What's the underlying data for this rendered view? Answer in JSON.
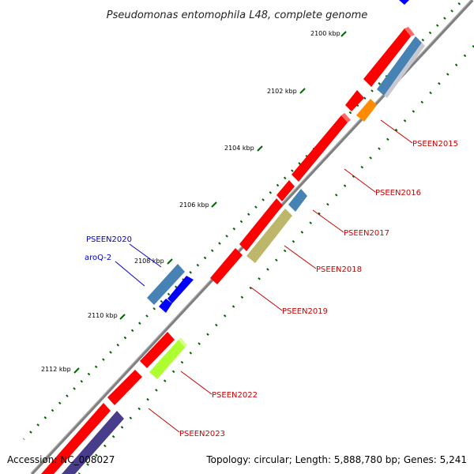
{
  "title": "Pseudomonas entomophila L48, complete genome",
  "accession_text": "Accession: NC_008027",
  "summary_text": "Topology: circular; Length: 5,888,780 bp; Genes: 5,241",
  "kbp_labels": [
    "2100 kbp",
    "2102 kbp",
    "2104 kbp",
    "2106 kbp",
    "2108 kbp",
    "2110 kbp",
    "2112 kbp"
  ],
  "gene_labels": {
    "pseen2015": "PSEEN2015",
    "pseen2016": "PSEEN2016",
    "pseen2017": "PSEEN2017",
    "pseen2018": "PSEEN2018",
    "pseen2019": "PSEEN2019",
    "pseen2020": "PSEEN2020",
    "aroq2": "aroQ-2",
    "pseen2022": "PSEEN2022",
    "pseen2023": "PSEEN2023"
  },
  "colors": {
    "backbone": "#808080",
    "forward_gene": "#ff0000",
    "reverse_gene_a": "#4682b4",
    "reverse_gene_b": "#bdb76b",
    "reverse_gene_c": "#adff2f",
    "reverse_gene_d": "#483d8b",
    "reverse_gene_e": "#ff8c00",
    "left_gene": "#0000ff",
    "tick": "#006400",
    "label_right": "#cc0000",
    "label_left": "#0000cc"
  }
}
